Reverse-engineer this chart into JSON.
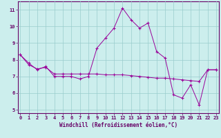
{
  "xlabel": "Windchill (Refroidissement éolien,°C)",
  "hours": [
    0,
    1,
    2,
    3,
    4,
    5,
    6,
    7,
    8,
    9,
    10,
    11,
    12,
    13,
    14,
    15,
    16,
    17,
    18,
    19,
    20,
    21,
    22,
    23
  ],
  "windchill": [
    8.3,
    7.8,
    7.4,
    7.6,
    7.0,
    7.0,
    7.0,
    6.85,
    7.0,
    8.7,
    9.3,
    9.9,
    11.1,
    10.4,
    9.9,
    10.2,
    8.5,
    8.1,
    5.9,
    5.7,
    6.5,
    5.3,
    7.4,
    7.4
  ],
  "temperature": [
    8.3,
    7.7,
    7.45,
    7.55,
    7.15,
    7.15,
    7.15,
    7.15,
    7.15,
    7.15,
    7.1,
    7.1,
    7.1,
    7.05,
    7.0,
    6.95,
    6.9,
    6.9,
    6.85,
    6.8,
    6.75,
    6.7,
    7.4,
    7.4
  ],
  "ylim": [
    4.8,
    11.5
  ],
  "xlim": [
    -0.3,
    23.3
  ],
  "yticks": [
    5,
    6,
    7,
    8,
    9,
    10,
    11
  ],
  "xticks": [
    0,
    1,
    2,
    3,
    4,
    5,
    6,
    7,
    8,
    9,
    10,
    11,
    12,
    13,
    14,
    15,
    16,
    17,
    18,
    19,
    20,
    21,
    22,
    23
  ],
  "line_color": "#990099",
  "marker": "+",
  "bg_color": "#cceeed",
  "grid_color": "#99cccc",
  "axis_color": "#660066",
  "label_color": "#660066",
  "tick_color": "#660066"
}
